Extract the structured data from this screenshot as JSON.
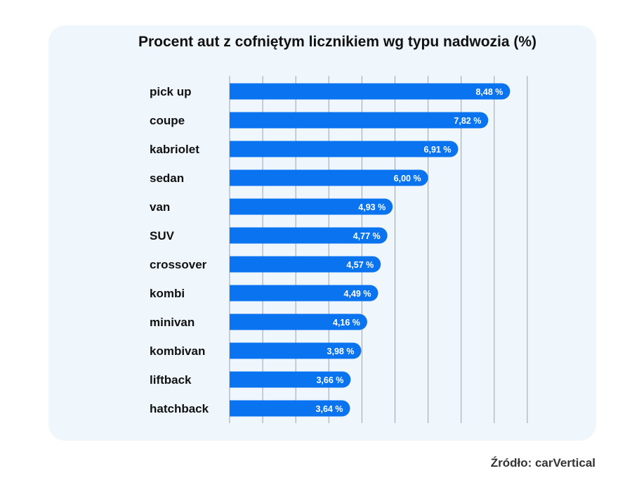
{
  "chart_data": {
    "type": "bar",
    "orientation": "horizontal",
    "title": "Procent aut z cofniętym licznikiem wg typu nadwozia (%)",
    "source": "Źródło: carVertical",
    "categories": [
      "pick up",
      "coupe",
      "kabriolet",
      "sedan",
      "van",
      "SUV",
      "crossover",
      "kombi",
      "minivan",
      "kombivan",
      "liftback",
      "hatchback"
    ],
    "values": [
      8.48,
      7.82,
      6.91,
      6.0,
      4.93,
      4.77,
      4.57,
      4.49,
      4.16,
      3.98,
      3.66,
      3.64
    ],
    "value_labels": [
      "8,48 %",
      "7,82 %",
      "6,91 %",
      "6,00 %",
      "4,93 %",
      "4,77 %",
      "4,57 %",
      "4,49 %",
      "4,16 %",
      "3,98 %",
      "3,66 %",
      "3,64 %"
    ],
    "xlim": [
      0,
      9
    ],
    "x_grid_step": 1,
    "grid": true,
    "legend": "none",
    "colors": {
      "bar": "#0a74f0",
      "grid": "#9aa3ad",
      "background": "#eff7fd"
    }
  }
}
